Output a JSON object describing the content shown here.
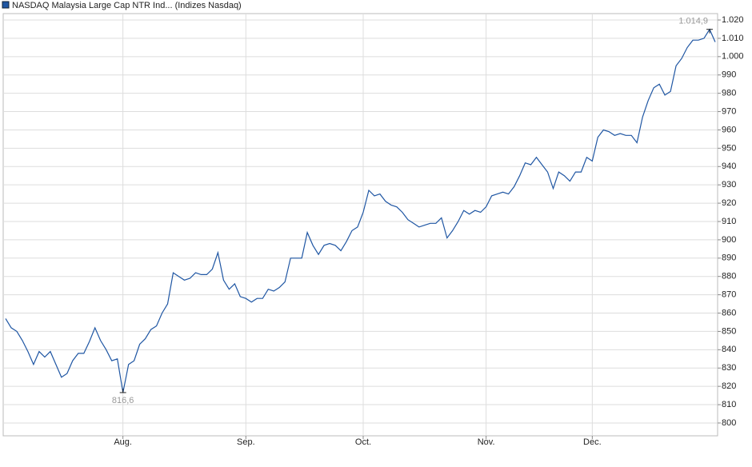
{
  "chart_data": {
    "type": "line",
    "series": [
      {
        "name": "NASDAQ Malaysia Large Cap NTR Ind... (Indizes Nasdaq)",
        "color": "#1f56a3",
        "values": [
          857,
          852,
          850,
          845,
          839,
          832,
          839,
          836,
          839,
          832,
          825,
          827,
          834,
          838,
          838,
          844.5,
          852,
          845,
          840,
          834,
          835,
          816.6,
          832,
          834,
          843,
          846,
          851,
          853,
          860,
          865,
          882,
          880,
          878,
          879,
          882,
          881,
          881,
          884,
          893,
          878,
          873,
          876,
          869,
          868,
          866,
          868,
          868,
          873,
          872,
          874,
          877,
          890,
          890,
          890,
          904,
          897,
          892,
          897,
          898,
          897,
          894,
          899,
          905,
          907,
          915,
          927,
          924,
          925,
          921,
          919,
          918,
          915,
          911,
          909,
          907,
          908,
          909,
          909,
          912,
          901,
          905,
          910,
          916,
          914,
          916,
          915,
          918,
          924,
          925,
          926,
          925,
          929,
          935,
          942,
          941,
          945,
          941,
          937,
          928,
          937,
          935,
          932,
          937,
          937,
          945,
          943,
          956,
          960,
          959,
          957,
          958,
          957,
          957,
          953,
          967,
          976,
          983,
          985,
          979,
          981,
          995,
          999,
          1005,
          1009,
          1009,
          1010,
          1014.9,
          1008
        ],
        "value_labels": [
          null,
          null,
          null,
          null,
          null,
          null,
          null,
          null,
          null,
          null,
          null,
          null,
          null,
          null,
          null,
          null,
          null,
          null,
          null,
          null,
          null,
          "816,6",
          null,
          null,
          null,
          null,
          null,
          null,
          null,
          null,
          null,
          null,
          null,
          null,
          null,
          null,
          null,
          null,
          null,
          null,
          null,
          null,
          null,
          null,
          null,
          null,
          null,
          null,
          null,
          null,
          null,
          null,
          null,
          null,
          null,
          null,
          null,
          null,
          null,
          null,
          null,
          null,
          null,
          null,
          null,
          null,
          null,
          null,
          null,
          null,
          null,
          null,
          null,
          null,
          null,
          null,
          null,
          null,
          null,
          null,
          null,
          null,
          null,
          null,
          null,
          null,
          null,
          null,
          null,
          null,
          null,
          null,
          null,
          null,
          null,
          null,
          null,
          null,
          null,
          null,
          null,
          null,
          null,
          null,
          null,
          null,
          null,
          null,
          null,
          null,
          null,
          null,
          null,
          null,
          null,
          null,
          null,
          null,
          null,
          null,
          null,
          null,
          null,
          null,
          null,
          null,
          "1.014,9",
          null
        ]
      }
    ],
    "categories": [
      null,
      null,
      null,
      null,
      null,
      null,
      null,
      null,
      null,
      null,
      null,
      null,
      null,
      null,
      null,
      null,
      null,
      null,
      null,
      null,
      null,
      "Aug.",
      null,
      null,
      null,
      null,
      null,
      null,
      null,
      null,
      null,
      null,
      null,
      null,
      null,
      null,
      null,
      null,
      null,
      null,
      null,
      null,
      null,
      "Sep.",
      null,
      null,
      null,
      null,
      null,
      null,
      null,
      null,
      null,
      null,
      null,
      null,
      null,
      null,
      null,
      null,
      null,
      null,
      null,
      null,
      "Oct.",
      null,
      null,
      null,
      null,
      null,
      null,
      null,
      null,
      null,
      null,
      null,
      null,
      null,
      null,
      null,
      null,
      null,
      null,
      null,
      null,
      null,
      "Nov.",
      null,
      null,
      null,
      null,
      null,
      null,
      null,
      null,
      null,
      null,
      null,
      null,
      null,
      null,
      null,
      null,
      null,
      null,
      "Dec.",
      null,
      null,
      null,
      null,
      null,
      null,
      null,
      null,
      null,
      null,
      null,
      null,
      null,
      null,
      null,
      null,
      null,
      null,
      null,
      null,
      null,
      null
    ],
    "ylim": [
      793,
      1023.5
    ],
    "yticks": [
      800,
      810,
      820,
      830,
      840,
      850,
      860,
      870,
      880,
      890,
      900,
      910,
      920,
      930,
      940,
      950,
      960,
      970,
      980,
      990,
      {
        "value": 1000,
        "label": "1.000"
      },
      {
        "value": 1010,
        "label": "1.010"
      },
      {
        "value": 1020,
        "label": "1.020"
      }
    ],
    "grid": true,
    "legend": "top-left"
  }
}
